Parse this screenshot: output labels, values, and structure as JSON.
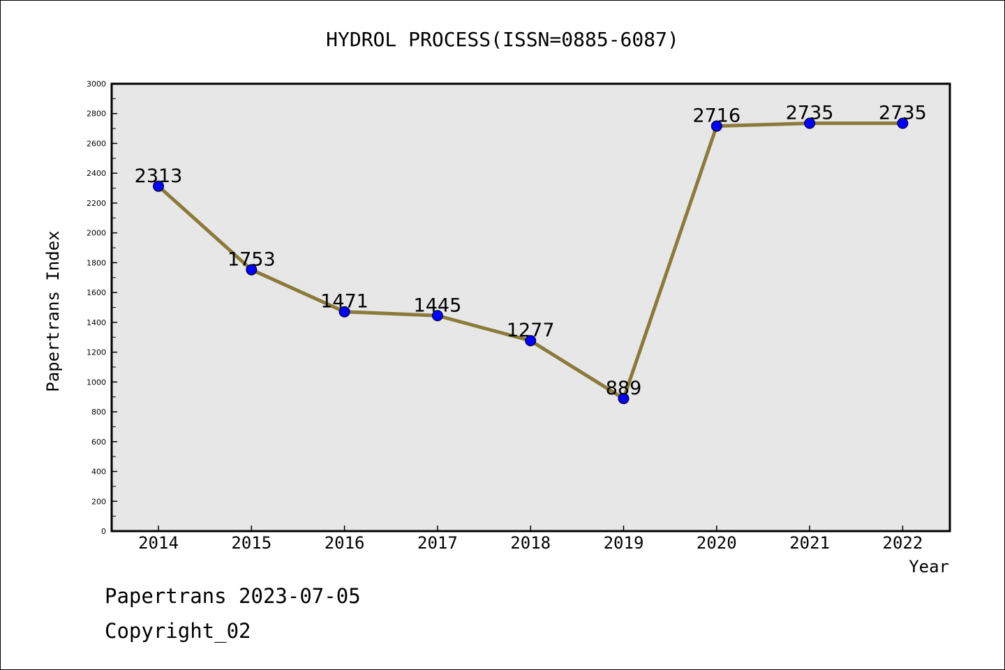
{
  "chart_data": {
    "type": "line",
    "title": "HYDROL PROCESS(ISSN=0885-6087)",
    "xlabel": "Year",
    "ylabel": "Papertrans Index",
    "categories": [
      "2014",
      "2015",
      "2016",
      "2017",
      "2018",
      "2019",
      "2020",
      "2021",
      "2022"
    ],
    "series": [
      {
        "values": [
          2313,
          1753,
          1471,
          1445,
          1277,
          889,
          2716,
          2735,
          2735
        ]
      }
    ],
    "data_labels": [
      "2313",
      "1753",
      "1471",
      "1445",
      "1277",
      "889",
      "2716",
      "2735",
      "2735"
    ],
    "ylim": [
      0,
      3000
    ],
    "yticks": [
      0,
      200,
      400,
      600,
      800,
      1000,
      1200,
      1400,
      1600,
      1800,
      2000,
      2200,
      2400,
      2600,
      2800,
      3000
    ],
    "grid": false,
    "legend": "none",
    "colors": {
      "line": "#8B7A3A",
      "marker": "#0000FF",
      "plot_background": "#E7E7E7"
    }
  },
  "footer": {
    "line1": "Papertrans 2023-07-05",
    "line2": "Copyright_02"
  }
}
